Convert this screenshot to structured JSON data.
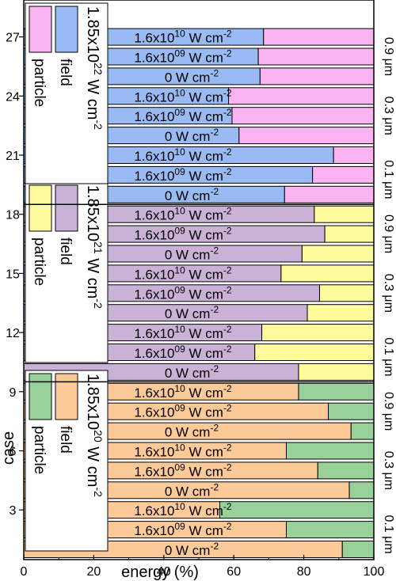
{
  "chart_data": {
    "type": "bar",
    "orientation": "horizontal",
    "stacked": true,
    "xlabel": "energy (%)",
    "ylabel": "case",
    "xlim": [
      0,
      100
    ],
    "x_ticks": [
      "0",
      "20",
      "40",
      "60",
      "80",
      "100"
    ],
    "y_ticks": [
      "3",
      "6",
      "9",
      "12",
      "15",
      "18",
      "21",
      "24",
      "27"
    ],
    "colors": {
      "field_2e20": "#fcc998",
      "particle_2e20": "#98d19a",
      "field_2e21": "#c9b2d6",
      "particle_2e21": "#fdfb9b",
      "field_2e22": "#99baf2",
      "particle_2e22": "#fbb4f2",
      "axis": "#000000"
    },
    "panels": [
      {
        "intensity_label": "1.85x10",
        "intensity_exp": "20",
        "intensity_unit": "W cm",
        "intensity_unit_exp": "-2",
        "field_label": "field",
        "particle_label": "particle",
        "field_color": "#fcc998",
        "particle_color": "#98d19a",
        "legend_position": "left"
      },
      {
        "intensity_label": "1.85x10",
        "intensity_exp": "21",
        "intensity_unit": "W cm",
        "intensity_unit_exp": "-2",
        "field_label": "field",
        "particle_label": "particle",
        "field_color": "#c9b2d6",
        "particle_color": "#fdfb9b",
        "legend_position": "left"
      },
      {
        "intensity_label": "1.85x10",
        "intensity_exp": "22",
        "intensity_unit": "W cm",
        "intensity_unit_exp": "-2",
        "field_label": "field",
        "particle_label": "particle",
        "field_color": "#99baf2",
        "particle_color": "#fbb4f2",
        "legend_position": "left"
      }
    ],
    "thickness_labels": [
      "0.1 μm",
      "0.3 μm",
      "0.9 μm"
    ],
    "bars": [
      {
        "case": 1,
        "panel": 0,
        "field": 91,
        "label": "0 W cm",
        "label_exp": "-2"
      },
      {
        "case": 2,
        "panel": 0,
        "field": 75,
        "label": "1.6x10",
        "label_base_exp": "09",
        "label_unit": " W cm",
        "label_exp": "-2"
      },
      {
        "case": 3,
        "panel": 0,
        "field": 56,
        "label": "1.6x10",
        "label_base_exp": "10",
        "label_unit": " W cm",
        "label_exp": "-2"
      },
      {
        "case": 4,
        "panel": 0,
        "field": 93,
        "label": "0 W cm",
        "label_exp": "-2"
      },
      {
        "case": 5,
        "panel": 0,
        "field": 84,
        "label": "1.6x10",
        "label_base_exp": "09",
        "label_unit": " W cm",
        "label_exp": "-2"
      },
      {
        "case": 6,
        "panel": 0,
        "field": 75,
        "label": "1.6x10",
        "label_base_exp": "10",
        "label_unit": " W cm",
        "label_exp": "-2"
      },
      {
        "case": 7,
        "panel": 0,
        "field": 93.5,
        "label": "0 W cm",
        "label_exp": "-2"
      },
      {
        "case": 8,
        "panel": 0,
        "field": 87,
        "label": "1.6x10",
        "label_base_exp": "09",
        "label_unit": " W cm",
        "label_exp": "-2"
      },
      {
        "case": 9,
        "panel": 0,
        "field": 78.5,
        "label": "1.6x10",
        "label_base_exp": "10",
        "label_unit": " W cm",
        "label_exp": "-2"
      },
      {
        "case": 10,
        "panel": 1,
        "field": 78.5,
        "label": "0 W cm",
        "label_exp": "-2"
      },
      {
        "case": 11,
        "panel": 1,
        "field": 66,
        "label": "1.6x10",
        "label_base_exp": "09",
        "label_unit": " W cm",
        "label_exp": "-2"
      },
      {
        "case": 12,
        "panel": 1,
        "field": 68,
        "label": "1.6x10",
        "label_base_exp": "10",
        "label_unit": " W cm",
        "label_exp": "-2"
      },
      {
        "case": 13,
        "panel": 1,
        "field": 81,
        "label": "0 W cm",
        "label_exp": "-2"
      },
      {
        "case": 14,
        "panel": 1,
        "field": 84.5,
        "label": "1.6x10",
        "label_base_exp": "09",
        "label_unit": " W cm",
        "label_exp": "-2"
      },
      {
        "case": 15,
        "panel": 1,
        "field": 73.5,
        "label": "1.6x10",
        "label_base_exp": "10",
        "label_unit": " W cm",
        "label_exp": "-2"
      },
      {
        "case": 16,
        "panel": 1,
        "field": 79.5,
        "label": "0 W cm",
        "label_exp": "-2"
      },
      {
        "case": 17,
        "panel": 1,
        "field": 86,
        "label": "1.6x10",
        "label_base_exp": "09",
        "label_unit": " W cm",
        "label_exp": "-2"
      },
      {
        "case": 18,
        "panel": 1,
        "field": 83,
        "label": "1.6x10",
        "label_base_exp": "10",
        "label_unit": " W cm",
        "label_exp": "-2"
      },
      {
        "case": 19,
        "panel": 2,
        "field": 74.5,
        "label": "0 W cm",
        "label_exp": "-2"
      },
      {
        "case": 20,
        "panel": 2,
        "field": 82.5,
        "label": "1.6x10",
        "label_base_exp": "09",
        "label_unit": " W cm",
        "label_exp": "-2"
      },
      {
        "case": 21,
        "panel": 2,
        "field": 88.5,
        "label": "1.6x10",
        "label_base_exp": "10",
        "label_unit": " W cm",
        "label_exp": "-2"
      },
      {
        "case": 22,
        "panel": 2,
        "field": 61.5,
        "label": "0 W cm",
        "label_exp": "-2"
      },
      {
        "case": 23,
        "panel": 2,
        "field": 59.5,
        "label": "1.6x10",
        "label_base_exp": "09",
        "label_unit": " W cm",
        "label_exp": "-2"
      },
      {
        "case": 24,
        "panel": 2,
        "field": 58.5,
        "label": "1.6x10",
        "label_base_exp": "10",
        "label_unit": " W cm",
        "label_exp": "-2"
      },
      {
        "case": 25,
        "panel": 2,
        "field": 67.5,
        "label": "0 W cm",
        "label_exp": "-2"
      },
      {
        "case": 26,
        "panel": 2,
        "field": 67,
        "label": "1.6x10",
        "label_base_exp": "09",
        "label_unit": " W cm",
        "label_exp": "-2"
      },
      {
        "case": 27,
        "panel": 2,
        "field": 68.5,
        "label": "1.6x10",
        "label_base_exp": "10",
        "label_unit": " W cm",
        "label_exp": "-2"
      }
    ]
  }
}
